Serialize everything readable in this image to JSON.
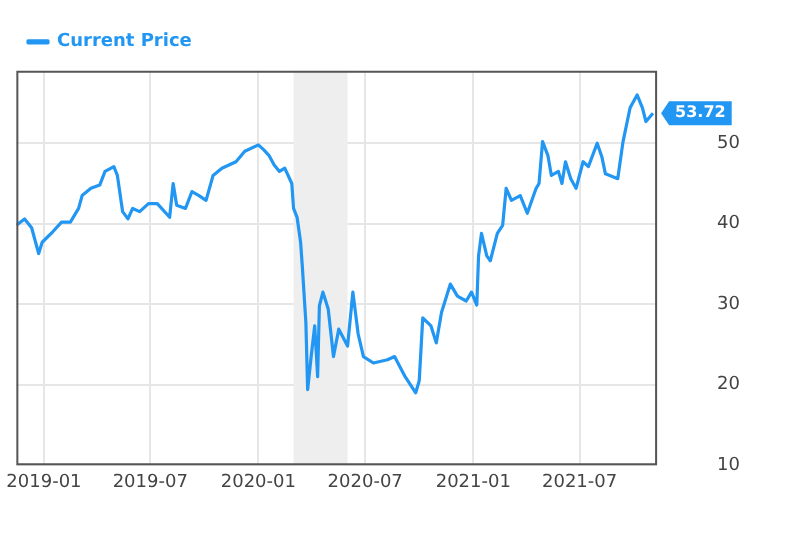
{
  "chart_data": {
    "type": "line",
    "x": [
      "2018-11-15",
      "2018-11-29",
      "2018-12-11",
      "2018-12-23",
      "2018-12-29",
      "2019-01-16",
      "2019-01-31",
      "2019-02-15",
      "2019-03-01",
      "2019-03-07",
      "2019-03-22",
      "2019-04-06",
      "2019-04-15",
      "2019-04-30",
      "2019-05-06",
      "2019-05-15",
      "2019-05-24",
      "2019-06-01",
      "2019-06-13",
      "2019-06-28",
      "2019-07-13",
      "2019-08-03",
      "2019-08-09",
      "2019-08-15",
      "2019-08-30",
      "2019-09-10",
      "2019-09-22",
      "2019-10-04",
      "2019-10-16",
      "2019-10-31",
      "2019-11-24",
      "2019-12-09",
      "2020-01-01",
      "2020-01-10",
      "2020-01-19",
      "2020-01-28",
      "2020-02-06",
      "2020-02-15",
      "2020-02-27",
      "2020-03-01",
      "2020-03-07",
      "2020-03-13",
      "2020-03-16",
      "2020-03-22",
      "2020-03-25",
      "2020-03-31",
      "2020-04-06",
      "2020-04-11",
      "2020-04-14",
      "2020-04-20",
      "2020-04-29",
      "2020-05-08",
      "2020-05-17",
      "2020-06-01",
      "2020-06-10",
      "2020-06-19",
      "2020-06-28",
      "2020-07-15",
      "2020-08-08",
      "2020-08-20",
      "2020-09-07",
      "2020-09-25",
      "2020-10-01",
      "2020-10-07",
      "2020-10-21",
      "2020-10-30",
      "2020-11-08",
      "2020-11-23",
      "2020-12-05",
      "2020-12-20",
      "2020-12-29",
      "2021-01-07",
      "2021-01-10",
      "2021-01-15",
      "2021-01-24",
      "2021-01-30",
      "2021-02-11",
      "2021-02-20",
      "2021-02-26",
      "2021-03-07",
      "2021-03-22",
      "2021-04-03",
      "2021-04-18",
      "2021-04-23",
      "2021-04-29",
      "2021-05-08",
      "2021-05-14",
      "2021-05-26",
      "2021-06-01",
      "2021-06-07",
      "2021-06-16",
      "2021-06-25",
      "2021-07-07",
      "2021-07-16",
      "2021-07-31",
      "2021-08-08",
      "2021-08-14",
      "2021-09-04",
      "2021-09-13",
      "2021-09-25",
      "2021-10-07",
      "2021-10-16",
      "2021-10-22",
      "2021-11-03"
    ],
    "series": [
      {
        "name": "Current Price",
        "color": "#2196f3",
        "values": [
          39.8,
          40.6,
          39.5,
          36.3,
          37.7,
          39.0,
          40.2,
          40.2,
          41.9,
          43.5,
          44.4,
          44.8,
          46.5,
          47.1,
          46.0,
          41.5,
          40.6,
          41.9,
          41.5,
          42.5,
          42.5,
          40.8,
          45.0,
          42.3,
          41.9,
          44.0,
          43.5,
          42.9,
          46.0,
          46.9,
          47.7,
          49.0,
          49.8,
          49.2,
          48.5,
          47.3,
          46.5,
          46.9,
          45.0,
          41.9,
          40.8,
          37.7,
          34.6,
          27.7,
          19.4,
          23.5,
          27.3,
          21.0,
          29.8,
          31.5,
          29.4,
          23.5,
          26.9,
          24.8,
          31.5,
          26.3,
          23.5,
          22.7,
          23.1,
          23.5,
          21.0,
          19.0,
          20.5,
          28.3,
          27.3,
          25.2,
          29.0,
          32.5,
          31.0,
          30.4,
          31.5,
          29.9,
          36.0,
          38.8,
          36.0,
          35.4,
          38.8,
          39.8,
          44.4,
          42.9,
          43.5,
          41.3,
          44.4,
          45.0,
          50.2,
          48.5,
          46.0,
          46.5,
          45.0,
          47.7,
          45.6,
          44.4,
          47.7,
          47.1,
          50.0,
          48.3,
          46.2,
          45.6,
          50.2,
          54.4,
          56.0,
          54.4,
          52.7,
          53.72
        ],
        "value_labels": [
          null,
          null,
          null,
          null,
          null,
          null,
          null,
          null,
          null,
          null,
          null,
          null,
          null,
          null,
          null,
          null,
          null,
          null,
          null,
          null,
          null,
          null,
          null,
          null,
          null,
          null,
          null,
          null,
          null,
          null,
          null,
          null,
          null,
          null,
          null,
          null,
          null,
          null,
          null,
          null,
          null,
          null,
          null,
          null,
          null,
          null,
          null,
          null,
          null,
          null,
          null,
          null,
          null,
          null,
          null,
          null,
          null,
          null,
          null,
          null,
          null,
          null,
          null,
          null,
          null,
          null,
          null,
          null,
          null,
          null,
          null,
          null,
          null,
          null,
          null,
          null,
          null,
          null,
          null,
          null,
          null,
          null,
          null,
          null,
          null,
          null,
          null,
          null,
          null,
          null,
          null,
          null,
          null,
          null,
          null,
          null,
          null,
          null,
          null,
          null,
          null,
          null,
          null,
          "53.72"
        ]
      }
    ],
    "xlim": [
      "2018-11-15",
      "2021-11-10"
    ],
    "xticks": [
      {
        "value": "2019-01-01",
        "label": "2019-01"
      },
      {
        "value": "2019-07-01",
        "label": "2019-07"
      },
      {
        "value": "2020-01-01",
        "label": "2020-01"
      },
      {
        "value": "2020-07-01",
        "label": "2020-07"
      },
      {
        "value": "2021-01-01",
        "label": "2021-01"
      },
      {
        "value": "2021-07-01",
        "label": "2021-07"
      }
    ],
    "ylim": [
      10,
      59
    ],
    "yticks": [
      10,
      20,
      30,
      40,
      50
    ],
    "bands": [
      {
        "axis": "x",
        "from": "2020-03-01",
        "to": "2020-06-01",
        "color": "#eeeeee"
      }
    ],
    "grid": true,
    "legend": "top left",
    "marker": "none",
    "line_style": "solid"
  }
}
